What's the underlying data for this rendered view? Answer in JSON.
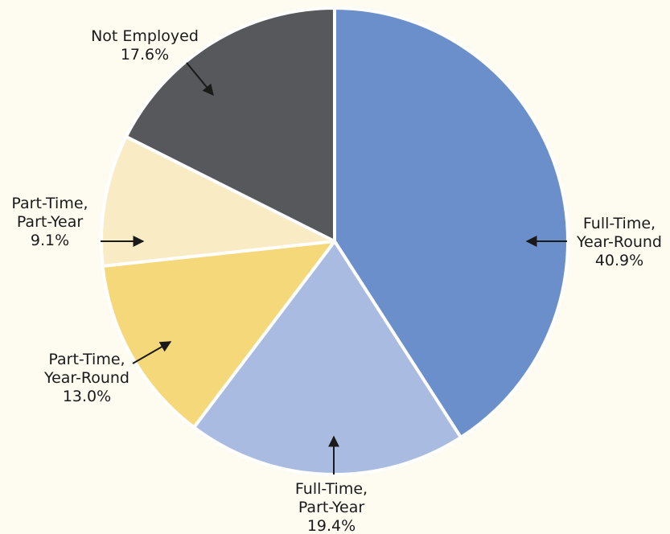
{
  "chart_data": {
    "type": "pie",
    "categories": [
      [
        "Full-Time,",
        "Year-Round"
      ],
      [
        "Full-Time,",
        "Part-Year"
      ],
      [
        "Part-Time,",
        "Year-Round"
      ],
      [
        "Part-Time,",
        "Part-Year"
      ],
      [
        "Not Employed"
      ]
    ],
    "values": [
      40.9,
      19.4,
      13.0,
      9.1,
      17.6
    ],
    "value_labels": [
      "40.9%",
      "19.4%",
      "13.0%",
      "9.1%",
      "17.6%"
    ],
    "colors": [
      "#6b8fcb",
      "#a9bbe0",
      "#f5d87a",
      "#f9ecc4",
      "#56585b"
    ]
  }
}
